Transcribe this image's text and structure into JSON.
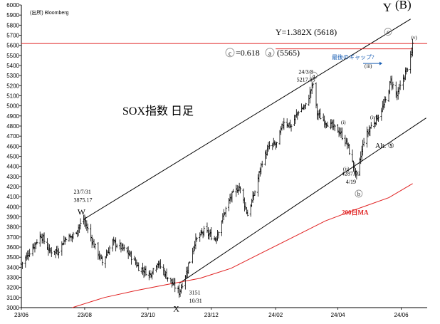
{
  "chart_data": {
    "type": "ohlc",
    "title": "SOX指数 日足",
    "source": "(出所) Bloomberg",
    "ylim": [
      3000,
      6000
    ],
    "yticks": [
      3000,
      3100,
      3200,
      3300,
      3400,
      3500,
      3600,
      3700,
      3800,
      3900,
      4000,
      4100,
      4200,
      4300,
      4400,
      4500,
      4600,
      4700,
      4800,
      4900,
      5000,
      5100,
      5200,
      5300,
      5400,
      5500,
      5600,
      5700,
      5800,
      5900,
      6000
    ],
    "xticks": [
      "23/06",
      "23/08",
      "23/10",
      "23/12",
      "24/02",
      "24/04",
      "24/06"
    ],
    "grid": false,
    "price_path": [
      [
        "23/06/01",
        3430
      ],
      [
        "23/06/12",
        3600
      ],
      [
        "23/06/20",
        3720
      ],
      [
        "23/06/28",
        3560
      ],
      [
        "23/07/06",
        3560
      ],
      [
        "23/07/14",
        3700
      ],
      [
        "23/07/20",
        3700
      ],
      [
        "23/07/31",
        3875
      ],
      [
        "23/08/10",
        3620
      ],
      [
        "23/08/18",
        3450
      ],
      [
        "23/08/28",
        3650
      ],
      [
        "23/09/05",
        3600
      ],
      [
        "23/09/14",
        3520
      ],
      [
        "23/09/22",
        3400
      ],
      [
        "23/10/03",
        3330
      ],
      [
        "23/10/10",
        3450
      ],
      [
        "23/10/20",
        3300
      ],
      [
        "23/10/31",
        3151
      ],
      [
        "23/11/07",
        3350
      ],
      [
        "23/11/15",
        3650
      ],
      [
        "23/11/24",
        3760
      ],
      [
        "23/12/05",
        3680
      ],
      [
        "23/12/14",
        3950
      ],
      [
        "23/12/20",
        4100
      ],
      [
        "23/12/28",
        4200
      ],
      [
        "24/01/05",
        3920
      ],
      [
        "24/01/12",
        4150
      ],
      [
        "24/01/19",
        4450
      ],
      [
        "24/01/26",
        4600
      ],
      [
        "24/02/02",
        4620
      ],
      [
        "24/02/09",
        4850
      ],
      [
        "24/02/16",
        4800
      ],
      [
        "24/02/23",
        4950
      ],
      [
        "24/03/01",
        5000
      ],
      [
        "24/03/08",
        5218
      ],
      [
        "24/03/12",
        4920
      ],
      [
        "24/03/19",
        4850
      ],
      [
        "24/03/26",
        4800
      ],
      [
        "24/04/02",
        4750
      ],
      [
        "24/04/10",
        4620
      ],
      [
        "24/04/19",
        4288
      ],
      [
        "24/04/26",
        4660
      ],
      [
        "24/05/03",
        4800
      ],
      [
        "24/05/10",
        4900
      ],
      [
        "24/05/17",
        5050
      ],
      [
        "24/05/22",
        5250
      ],
      [
        "24/05/28",
        5100
      ],
      [
        "24/06/04",
        5300
      ],
      [
        "24/06/07",
        5380
      ],
      [
        "24/06/10",
        5480
      ],
      [
        "24/06/11",
        5520
      ],
      [
        "24/06/12",
        5620
      ]
    ],
    "series": [
      {
        "name": "200日MA",
        "color": "#e02020",
        "points": [
          [
            "23/07/20",
            3000
          ],
          [
            "23/08/20",
            3100
          ],
          [
            "23/09/20",
            3170
          ],
          [
            "23/10/20",
            3230
          ],
          [
            "23/11/20",
            3290
          ],
          [
            "23/12/20",
            3390
          ],
          [
            "24/01/20",
            3550
          ],
          [
            "24/02/20",
            3710
          ],
          [
            "24/03/20",
            3860
          ],
          [
            "24/04/20",
            3980
          ],
          [
            "24/05/20",
            4090
          ],
          [
            "24/06/12",
            4230
          ]
        ]
      }
    ],
    "lines": [
      {
        "name": "upper-channel",
        "color": "#000000",
        "from": [
          "23/07/31",
          3875
        ],
        "to": [
          "24/06/10",
          5860
        ]
      },
      {
        "name": "lower-channel",
        "color": "#000000",
        "from": [
          "23/10/31",
          3240
        ],
        "to": [
          "24/06/25",
          4880
        ]
      },
      {
        "name": "hline-5618",
        "color": "#e02020",
        "from": [
          "23/06/01",
          5618
        ],
        "to": [
          "24/06/26",
          5618
        ]
      },
      {
        "name": "hline-5565",
        "color": "#e02020",
        "from": [
          "24/02/01",
          5565
        ],
        "to": [
          "24/06/12",
          5565
        ]
      }
    ],
    "annotations": {
      "w_label": "W",
      "w_text1": "23/7/31",
      "w_text2": "3875.17",
      "x_label": "X",
      "x_text1": "3151",
      "x_text2": "10/31",
      "y_label": "Y",
      "b_label": "(B)",
      "a_date": "24/3/8",
      "a_value": "5217.83",
      "a_circle": "a",
      "b_date": "4287.99",
      "b_value": "4/19",
      "b_circle": "b",
      "c_circle": "c",
      "target_text": "Y=1.382X (5618)",
      "fib_circle": "c",
      "fib_text1": "=0.618",
      "fib_circle2": "a",
      "fib_text2": "(5565)",
      "gap_text": "最後のギャップ?",
      "wave_i": "i",
      "wave_ii": "ii",
      "wave_iii": "iii",
      "wave_iv": "iv",
      "wave_v": "v",
      "alt_label": "Alt. ⑤",
      "ma_label": "200日MA"
    },
    "colors": {
      "price": "#000000",
      "ma": "#e02020",
      "gap": "#1a5fb4"
    }
  }
}
